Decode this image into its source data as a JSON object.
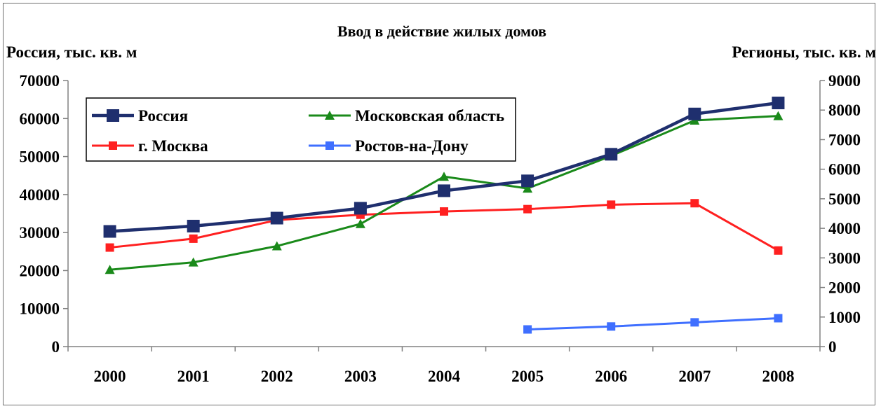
{
  "chart_data": {
    "type": "line",
    "title": "Ввод в действие жилых домов",
    "ylabel_left": "Россия, тыс. кв. м",
    "ylabel_right": "Регионы, тыс. кв. м",
    "x": [
      "2000",
      "2001",
      "2002",
      "2003",
      "2004",
      "2005",
      "2006",
      "2007",
      "2008"
    ],
    "ylim_left": [
      0,
      70000
    ],
    "yticks_left": [
      "0",
      "10000",
      "20000",
      "30000",
      "40000",
      "50000",
      "60000",
      "70000"
    ],
    "ylim_right": [
      0,
      9000
    ],
    "yticks_right": [
      "0",
      "1000",
      "2000",
      "3000",
      "4000",
      "5000",
      "6000",
      "7000",
      "8000",
      "9000"
    ],
    "legend_position": "top-left",
    "grid": false,
    "series": [
      {
        "name": "Россия",
        "axis": "left",
        "color": "#1f2f6e",
        "marker": "square-large",
        "values": [
          30300,
          31700,
          33800,
          36400,
          41000,
          43600,
          50600,
          61200,
          64100
        ]
      },
      {
        "name": "Московская область",
        "axis": "right",
        "color": "#1a8a1a",
        "marker": "triangle",
        "values": [
          2600,
          2850,
          3400,
          4150,
          5750,
          5350,
          6450,
          7650,
          7800
        ]
      },
      {
        "name": "г. Москва",
        "axis": "right",
        "color": "#ff2020",
        "marker": "square",
        "values": [
          3350,
          3650,
          4280,
          4460,
          4570,
          4650,
          4800,
          4850,
          3250
        ]
      },
      {
        "name": "Ростов-на-Дону",
        "axis": "right",
        "color": "#3f6fff",
        "marker": "square",
        "values": [
          null,
          null,
          null,
          null,
          null,
          580,
          680,
          820,
          960
        ]
      }
    ]
  }
}
